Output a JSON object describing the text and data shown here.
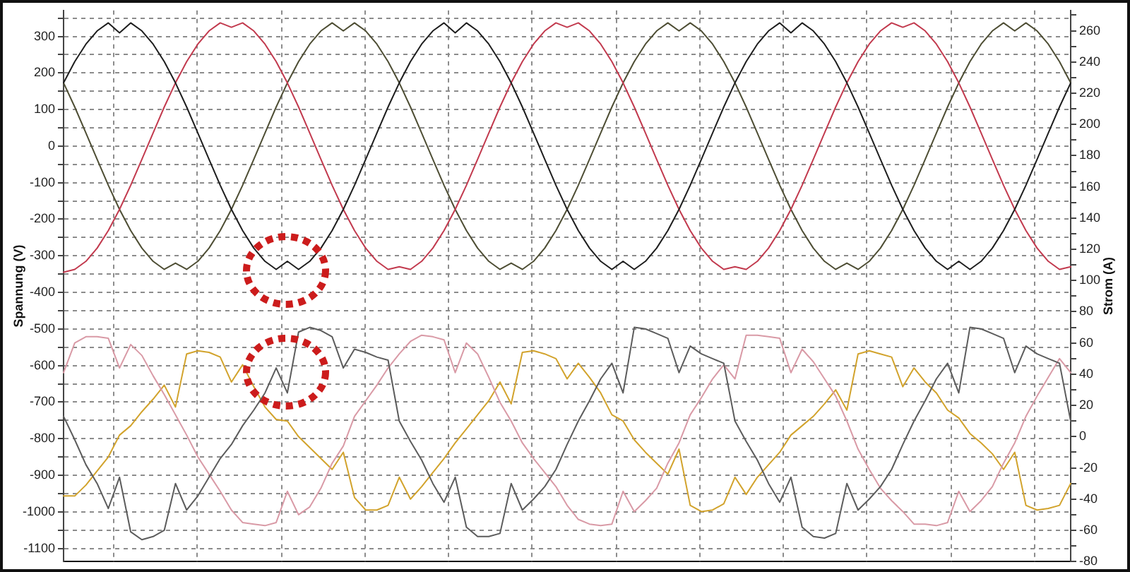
{
  "chart_data": {
    "type": "line",
    "ylabel": "Spannung (V)",
    "y2label": "Strom (A)",
    "categories": [
      null,
      null,
      null,
      null,
      null,
      null,
      null,
      null,
      null,
      null,
      null,
      null,
      null,
      null,
      null,
      null,
      null,
      null,
      null,
      null,
      null,
      null,
      null,
      null,
      null,
      null,
      null,
      null,
      null,
      null,
      null,
      null,
      null,
      null,
      null,
      null,
      null,
      null,
      null,
      null,
      null,
      null,
      null,
      null,
      null,
      null,
      null,
      null,
      null,
      null,
      null,
      null,
      null,
      null,
      null,
      null,
      null,
      null,
      null,
      null,
      null,
      null,
      null,
      null,
      null,
      null,
      null,
      null,
      null,
      null,
      null,
      null,
      null,
      null,
      null,
      null,
      null,
      null,
      null,
      null,
      null,
      null,
      null,
      null,
      null,
      null,
      null,
      null,
      null,
      null,
      null
    ],
    "series": [
      {
        "color": "#1e1e1e",
        "values": [
          173,
          231,
          279,
          315,
          337,
          310,
          337,
          315,
          279,
          231,
          173,
          107,
          36,
          -36,
          -107,
          -173,
          -231,
          -279,
          -315,
          -337,
          -315,
          -337,
          -315,
          -279,
          -231,
          -173,
          -107,
          -36,
          36,
          107,
          173,
          231,
          279,
          315,
          337,
          310,
          337,
          315,
          279,
          231,
          173,
          107,
          36,
          -36,
          -107,
          -173,
          -231,
          -279,
          -315,
          -337,
          -315,
          -337,
          -315,
          -279,
          -231,
          -173,
          -107,
          -36,
          36,
          107,
          173,
          231,
          279,
          315,
          337,
          310,
          337,
          315,
          279,
          231,
          173,
          107,
          36,
          -36,
          -107,
          -173,
          -231,
          -279,
          -315,
          -337,
          -315,
          -337,
          -315,
          -279,
          -231,
          -173,
          -107,
          -36,
          36,
          107,
          173
        ]
      },
      {
        "color": "#c23a4e",
        "values": [
          -345,
          -337,
          -315,
          -279,
          -231,
          -173,
          -107,
          -36,
          36,
          107,
          173,
          231,
          279,
          315,
          337,
          325,
          337,
          315,
          279,
          231,
          173,
          107,
          36,
          -36,
          -107,
          -173,
          -231,
          -279,
          -315,
          -337,
          -330,
          -337,
          -315,
          -279,
          -231,
          -173,
          -107,
          -36,
          36,
          107,
          173,
          231,
          279,
          315,
          337,
          325,
          337,
          315,
          279,
          231,
          173,
          107,
          36,
          -36,
          -107,
          -173,
          -231,
          -279,
          -315,
          -337,
          -330,
          -337,
          -315,
          -279,
          -231,
          -173,
          -107,
          -36,
          36,
          107,
          173,
          231,
          279,
          315,
          337,
          325,
          337,
          315,
          279,
          231,
          173,
          107,
          36,
          -36,
          -107,
          -173,
          -231,
          -279,
          -315,
          -337,
          -330
        ]
      },
      {
        "color": "#4e4e34",
        "values": [
          173,
          107,
          36,
          -36,
          -107,
          -173,
          -231,
          -279,
          -315,
          -337,
          -320,
          -337,
          -315,
          -279,
          -231,
          -173,
          -107,
          -36,
          36,
          107,
          173,
          231,
          279,
          315,
          337,
          315,
          337,
          315,
          279,
          231,
          173,
          107,
          36,
          -36,
          -107,
          -173,
          -231,
          -279,
          -315,
          -337,
          -320,
          -337,
          -315,
          -279,
          -231,
          -173,
          -107,
          -36,
          36,
          107,
          173,
          231,
          279,
          315,
          337,
          315,
          337,
          315,
          279,
          231,
          173,
          107,
          36,
          -36,
          -107,
          -173,
          -231,
          -279,
          -315,
          -337,
          -320,
          -337,
          -315,
          -279,
          -231,
          -173,
          -107,
          -36,
          36,
          107,
          173,
          231,
          279,
          315,
          337,
          315,
          337,
          315,
          279,
          231,
          173
        ]
      },
      {
        "color": "#5c5c5c",
        "axis": "y2",
        "values": [
          13,
          -2,
          -18,
          -30,
          -46,
          -26,
          -61,
          -66,
          -64,
          -60,
          -30,
          -47,
          -38,
          -26,
          -14,
          -5,
          7,
          17,
          28,
          44,
          28,
          67,
          70,
          68,
          64,
          44,
          56,
          54,
          51,
          49,
          10,
          -3,
          -15,
          -30,
          -42,
          -26,
          -58,
          -64,
          -64,
          -62,
          -30,
          -47,
          -40,
          -32,
          -21,
          -5,
          10,
          23,
          37,
          47,
          28,
          70,
          69,
          66,
          63,
          41,
          58,
          53,
          50,
          47,
          10,
          -3,
          -15,
          -30,
          -42,
          -26,
          -58,
          -64,
          -65,
          -62,
          -30,
          -47,
          -40,
          -32,
          -21,
          -5,
          10,
          23,
          37,
          47,
          28,
          70,
          69,
          66,
          63,
          41,
          58,
          53,
          50,
          47,
          10
        ]
      },
      {
        "color": "#d99aa6",
        "axis": "y2",
        "values": [
          41,
          60,
          64,
          64,
          63,
          44,
          59,
          52,
          39,
          27,
          14,
          1,
          -13,
          -24,
          -35,
          -47,
          -55,
          -56,
          -57,
          -55,
          -35,
          -50,
          -45,
          -33,
          -17,
          -6,
          13,
          23,
          33,
          44,
          53,
          61,
          65,
          64,
          62,
          41,
          60,
          53,
          38,
          22,
          10,
          -4,
          -14,
          -23,
          -32,
          -44,
          -53,
          -56,
          -57,
          -56,
          -35,
          -48,
          -41,
          -33,
          -17,
          -4,
          14,
          25,
          37,
          46,
          37,
          65,
          65,
          64,
          63,
          41,
          56,
          48,
          37,
          26,
          10,
          -8,
          -21,
          -33,
          -41,
          -48,
          -56,
          -56,
          -57,
          -55,
          -35,
          -48,
          -41,
          -32,
          -17,
          -4,
          13,
          26,
          38,
          50,
          41
        ]
      },
      {
        "color": "#d2a32c",
        "axis": "y2",
        "values": [
          -38,
          -38,
          -31,
          -22,
          -13,
          1,
          7,
          16,
          24,
          33,
          19,
          53,
          55,
          54,
          51,
          35,
          46,
          32,
          19,
          11,
          10,
          0,
          -7,
          -14,
          -21,
          -10,
          -39,
          -47,
          -47,
          -44,
          -26,
          -40,
          -32,
          -23,
          -14,
          -4,
          5,
          14,
          23,
          35,
          21,
          54,
          55,
          53,
          50,
          37,
          47,
          38,
          28,
          14,
          10,
          -2,
          -10,
          -17,
          -24,
          -8,
          -44,
          -48,
          -47,
          -43,
          -26,
          -37,
          -26,
          -18,
          -10,
          1,
          7,
          13,
          21,
          30,
          17,
          53,
          55,
          53,
          51,
          32,
          44,
          35,
          28,
          17,
          12,
          2,
          -4,
          -11,
          -21,
          -10,
          -44,
          -47,
          -46,
          -44,
          -30
        ]
      }
    ],
    "ylim": [
      -1136,
      371
    ],
    "yticks": [
      -1100,
      {
        "value": -1050,
        "label": null
      },
      -1000,
      {
        "value": -950,
        "label": null
      },
      -900,
      {
        "value": -850,
        "label": null
      },
      -800,
      {
        "value": -750,
        "label": null
      },
      -700,
      {
        "value": -650,
        "label": null
      },
      -600,
      {
        "value": -550,
        "label": null
      },
      -500,
      {
        "value": -450,
        "label": null
      },
      -400,
      {
        "value": -350,
        "label": null
      },
      -300,
      {
        "value": -250,
        "label": null
      },
      -200,
      {
        "value": -150,
        "label": null
      },
      -100,
      {
        "value": -50,
        "label": null
      },
      0,
      {
        "value": 50,
        "label": null
      },
      100,
      {
        "value": 150,
        "label": null
      },
      200,
      {
        "value": 250,
        "label": null
      },
      300,
      {
        "value": 350,
        "label": null
      }
    ],
    "y2lim": [
      -80,
      273
    ],
    "y2ticks": [
      -80,
      {
        "value": -70,
        "label": null
      },
      -60,
      {
        "value": -50,
        "label": null
      },
      -40,
      {
        "value": -30,
        "label": null
      },
      -20,
      {
        "value": -10,
        "label": null
      },
      0,
      {
        "value": 10,
        "label": null
      },
      20,
      {
        "value": 30,
        "label": null
      },
      40,
      {
        "value": 50,
        "label": null
      },
      60,
      {
        "value": 70,
        "label": null
      },
      80,
      {
        "value": 90,
        "label": null
      },
      100,
      {
        "value": 110,
        "label": null
      },
      120,
      {
        "value": 130,
        "label": null
      },
      140,
      {
        "value": 150,
        "label": null
      },
      160,
      {
        "value": 170,
        "label": null
      },
      180,
      {
        "value": 190,
        "label": null
      },
      200,
      {
        "value": 210,
        "label": null
      },
      220,
      {
        "value": 230,
        "label": null
      },
      240,
      {
        "value": 250,
        "label": null
      },
      260,
      {
        "value": 270,
        "label": null
      }
    ],
    "grid": true,
    "legend": false,
    "marker": "none"
  }
}
